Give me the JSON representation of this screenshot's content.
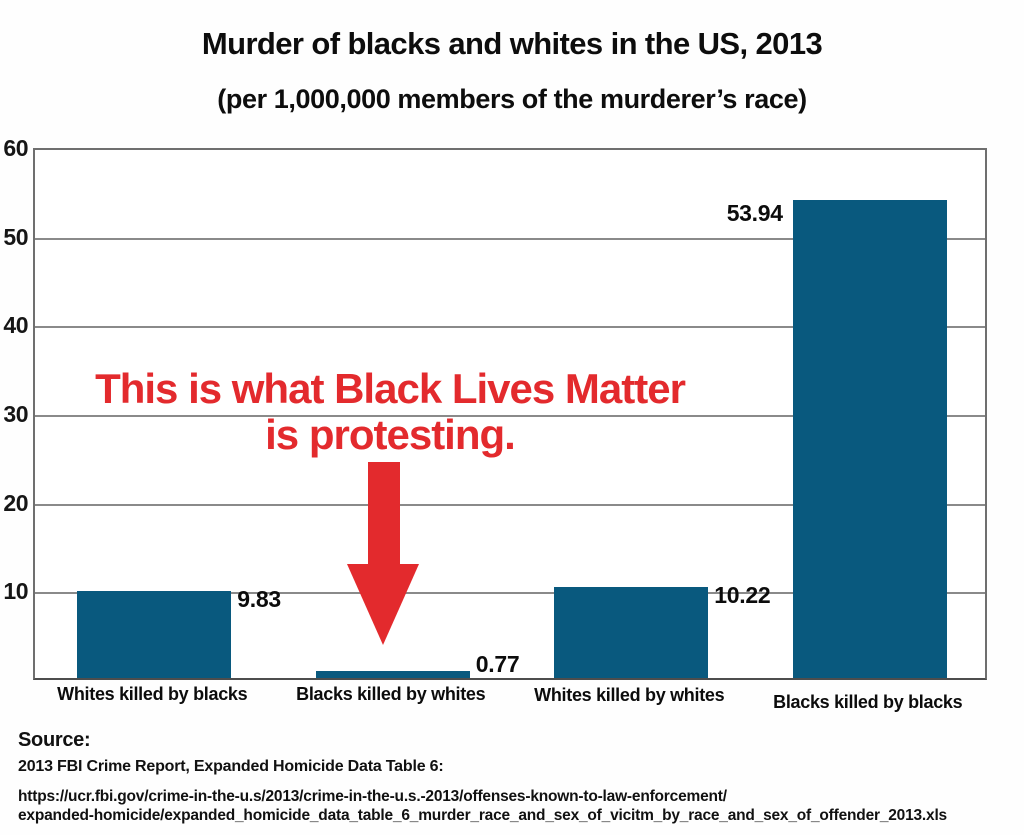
{
  "title": "Murder of blacks and whites in the US, 2013",
  "subtitle": "(per 1,000,000 members of the murderer’s race)",
  "annotation": {
    "line1": "This is what Black Lives Matter",
    "line2": "is protesting.",
    "arrow": "down-arrow"
  },
  "chart_data": {
    "type": "bar",
    "title": "Murder of blacks and whites in the US, 2013",
    "subtitle": "(per 1,000,000 members of the murderer’s race)",
    "categories": [
      "Whites killed by blacks",
      "Blacks killed by whites",
      "Whites killed by whites",
      "Blacks killed by blacks"
    ],
    "values": [
      9.83,
      0.77,
      10.22,
      53.94
    ],
    "value_labels": [
      "9.83",
      "0.77",
      "10.22",
      "53.94"
    ],
    "value_label_side": [
      "right",
      "right",
      "right",
      "left"
    ],
    "xlabel": "",
    "ylabel": "",
    "ylim": [
      0,
      60
    ],
    "yticks": [
      10,
      20,
      30,
      40,
      50,
      60
    ],
    "grid": true,
    "legend": "none",
    "bar_color": "#09597e"
  },
  "source": {
    "heading": "Source:",
    "reference": "2013 FBI Crime Report, Expanded Homicide Data Table 6:",
    "url_line1": "https://ucr.fbi.gov/crime-in-the-u.s/2013/crime-in-the-u.s.-2013/offenses-known-to-law-enforcement/",
    "url_line2": "expanded-homicide/expanded_homicide_data_table_6_murder_race_and_sex_of_vicitm_by_race_and_sex_of_offender_2013.xls"
  },
  "colors": {
    "bar": "#09597e",
    "annotation_red": "#e32a2d",
    "gridline": "#8a8a8a",
    "text": "#111111"
  }
}
